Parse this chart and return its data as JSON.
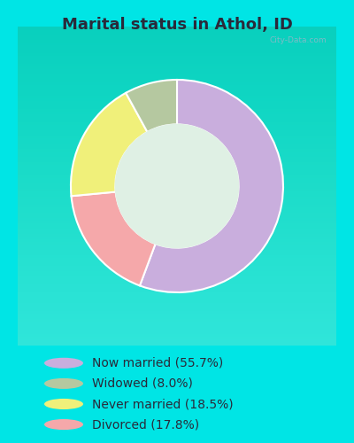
{
  "title": "Marital status in Athol, ID",
  "values": [
    55.7,
    17.8,
    18.5,
    8.0
  ],
  "colors": [
    "#c9aedd",
    "#f5a8aa",
    "#f0f07a",
    "#b5c8a0"
  ],
  "start_angle": 90,
  "legend_labels": [
    "Now married (55.7%)",
    "Widowed (8.0%)",
    "Never married (18.5%)",
    "Divorced (17.8%)"
  ],
  "legend_colors": [
    "#c9aedd",
    "#b5c8a0",
    "#f0f07a",
    "#f5a8aa"
  ],
  "outer_background": "#00e5e5",
  "chart_bg_top": "#e8f5ee",
  "chart_bg_bottom": "#d0ead8",
  "title_fontsize": 13,
  "title_color": "#2a2a3a",
  "donut_width": 0.42,
  "legend_fontsize": 10,
  "watermark": "City-Data.com",
  "watermark_color": "#90b8c8"
}
